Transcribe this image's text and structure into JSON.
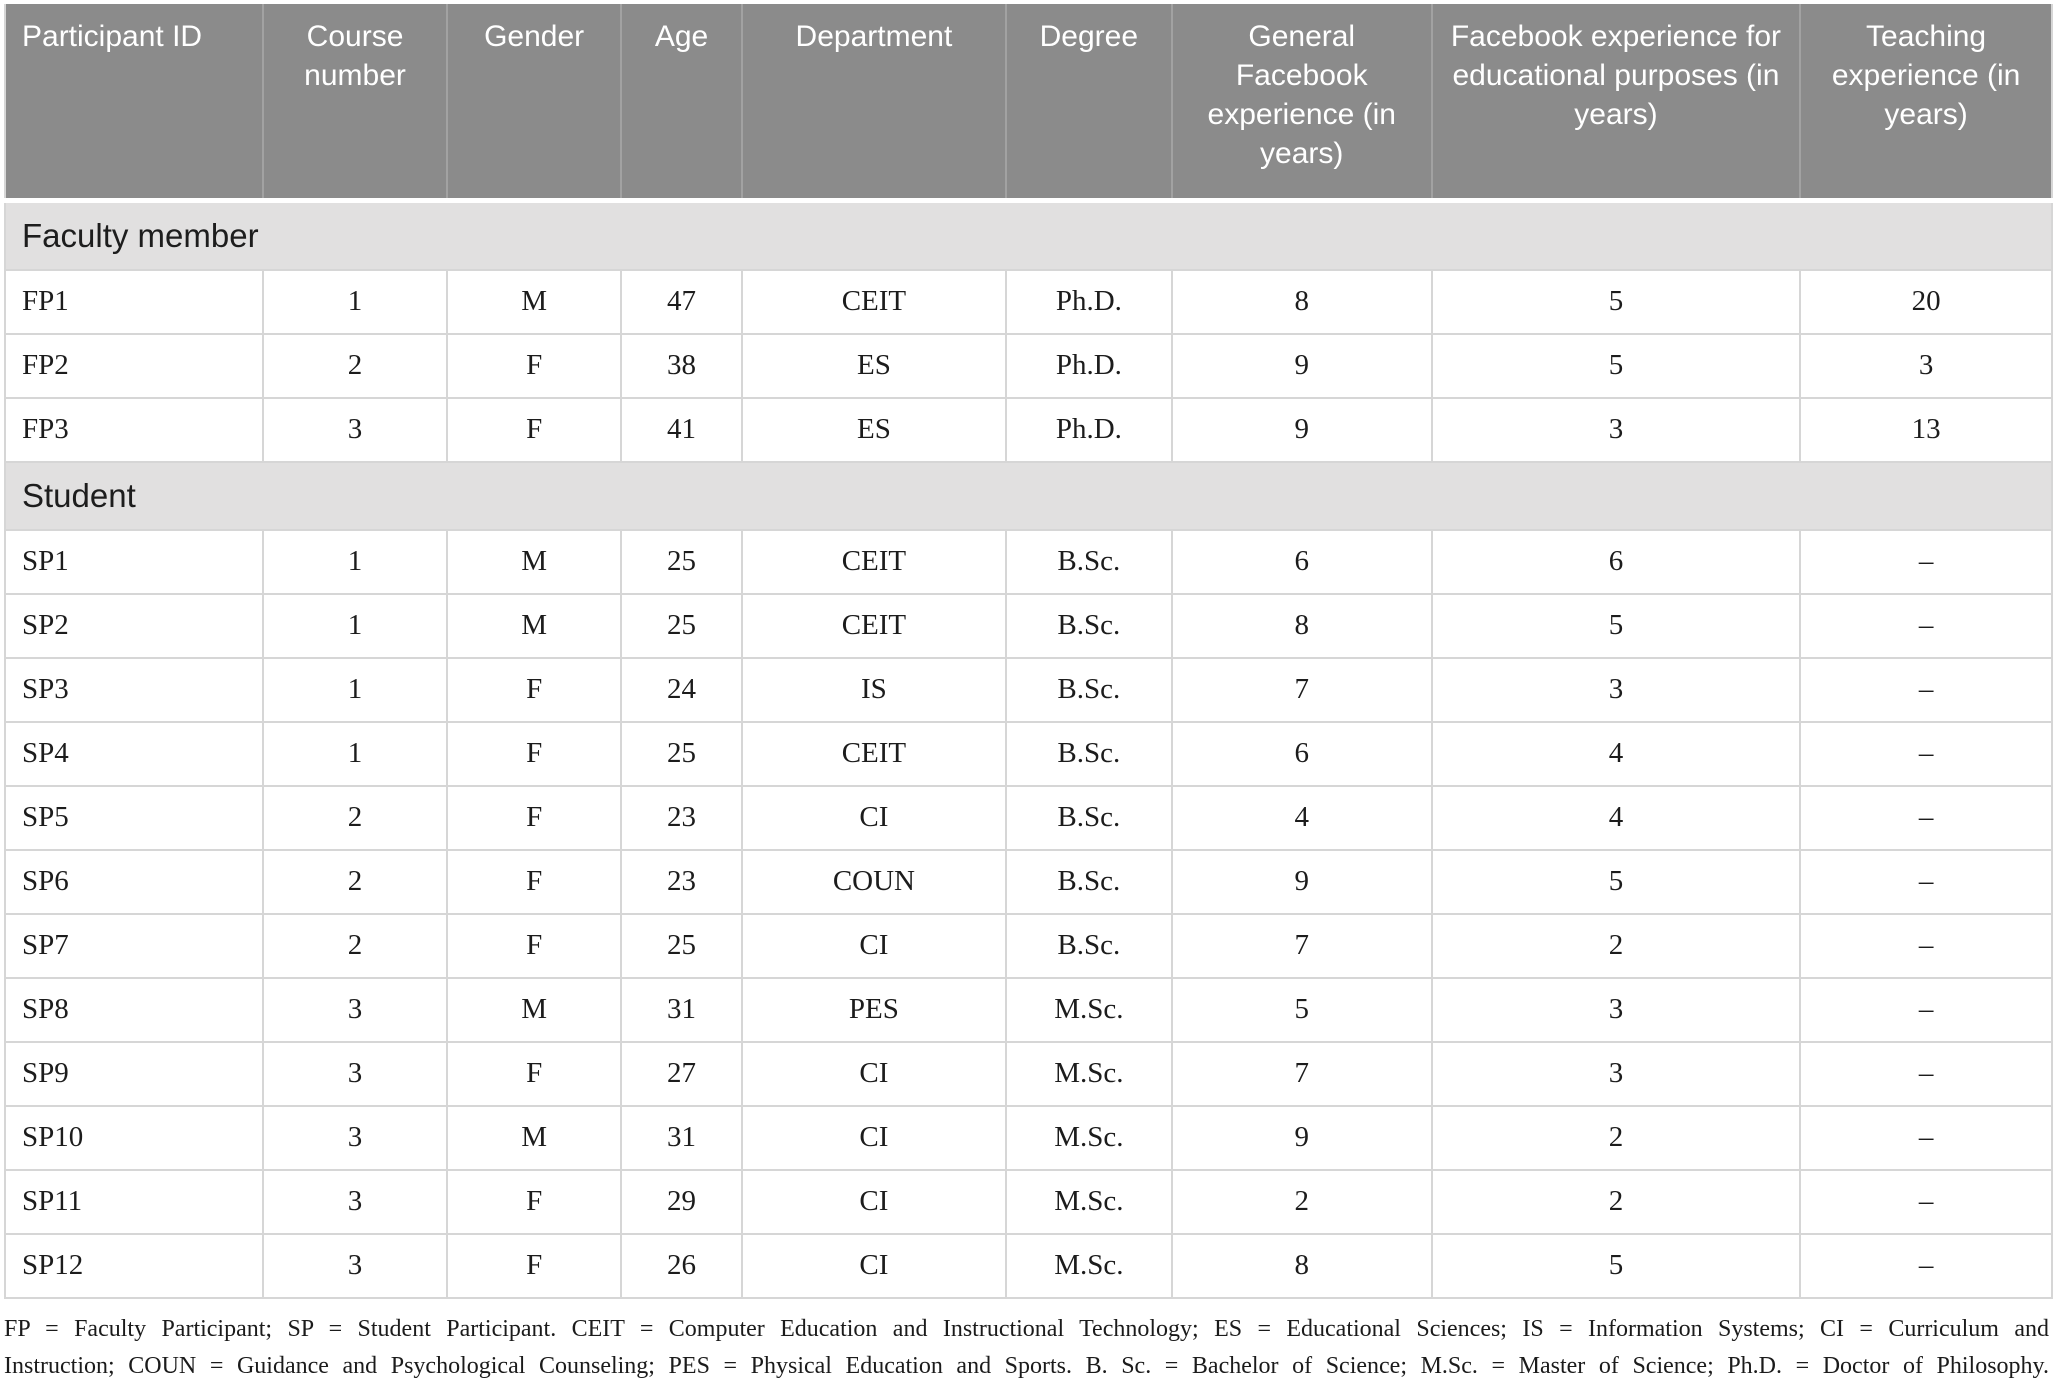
{
  "table": {
    "columns": [
      "Participant ID",
      "Course number",
      "Gender",
      "Age",
      "Department",
      "Degree",
      "General Facebook experience (in years)",
      "Facebook experience for educational purposes (in years)",
      "Teaching experience (in years)"
    ],
    "sections": [
      {
        "label": "Faculty member",
        "rows": [
          [
            "FP1",
            "1",
            "M",
            "47",
            "CEIT",
            "Ph.D.",
            "8",
            "5",
            "20"
          ],
          [
            "FP2",
            "2",
            "F",
            "38",
            "ES",
            "Ph.D.",
            "9",
            "5",
            "3"
          ],
          [
            "FP3",
            "3",
            "F",
            "41",
            "ES",
            "Ph.D.",
            "9",
            "3",
            "13"
          ]
        ]
      },
      {
        "label": "Student",
        "rows": [
          [
            "SP1",
            "1",
            "M",
            "25",
            "CEIT",
            "B.Sc.",
            "6",
            "6",
            "–"
          ],
          [
            "SP2",
            "1",
            "M",
            "25",
            "CEIT",
            "B.Sc.",
            "8",
            "5",
            "–"
          ],
          [
            "SP3",
            "1",
            "F",
            "24",
            "IS",
            "B.Sc.",
            "7",
            "3",
            "–"
          ],
          [
            "SP4",
            "1",
            "F",
            "25",
            "CEIT",
            "B.Sc.",
            "6",
            "4",
            "–"
          ],
          [
            "SP5",
            "2",
            "F",
            "23",
            "CI",
            "B.Sc.",
            "4",
            "4",
            "–"
          ],
          [
            "SP6",
            "2",
            "F",
            "23",
            "COUN",
            "B.Sc.",
            "9",
            "5",
            "–"
          ],
          [
            "SP7",
            "2",
            "F",
            "25",
            "CI",
            "B.Sc.",
            "7",
            "2",
            "–"
          ],
          [
            "SP8",
            "3",
            "M",
            "31",
            "PES",
            "M.Sc.",
            "5",
            "3",
            "–"
          ],
          [
            "SP9",
            "3",
            "F",
            "27",
            "CI",
            "M.Sc.",
            "7",
            "3",
            "–"
          ],
          [
            "SP10",
            "3",
            "M",
            "31",
            "CI",
            "M.Sc.",
            "9",
            "2",
            "–"
          ],
          [
            "SP11",
            "3",
            "F",
            "29",
            "CI",
            "M.Sc.",
            "2",
            "2",
            "–"
          ],
          [
            "SP12",
            "3",
            "F",
            "26",
            "CI",
            "M.Sc.",
            "8",
            "5",
            "–"
          ]
        ]
      }
    ],
    "footnote_lines": [
      "FP = Faculty Participant; SP = Student Participant. CEIT = Computer Education and Instructional Technology; ES = Educational Sciences; IS = Information Systems; CI = Curriculum and",
      "Instruction; COUN = Guidance and Psychological Counseling; PES = Physical Education and Sports. B. Sc. = Bachelor of Science; M.Sc. = Master of Science; Ph.D. = Doctor of Philosophy."
    ],
    "column_widths_percent": [
      12.6,
      9.0,
      8.5,
      5.9,
      12.9,
      8.1,
      12.7,
      18.0,
      12.3
    ]
  },
  "colors": {
    "header_background": "#8b8b8b",
    "header_text": "#ffffff",
    "header_divider": "#a2a2a2",
    "section_background": "#e1e0e0",
    "grid_border": "#d6d6d6",
    "body_text": "#1c1c1c"
  }
}
